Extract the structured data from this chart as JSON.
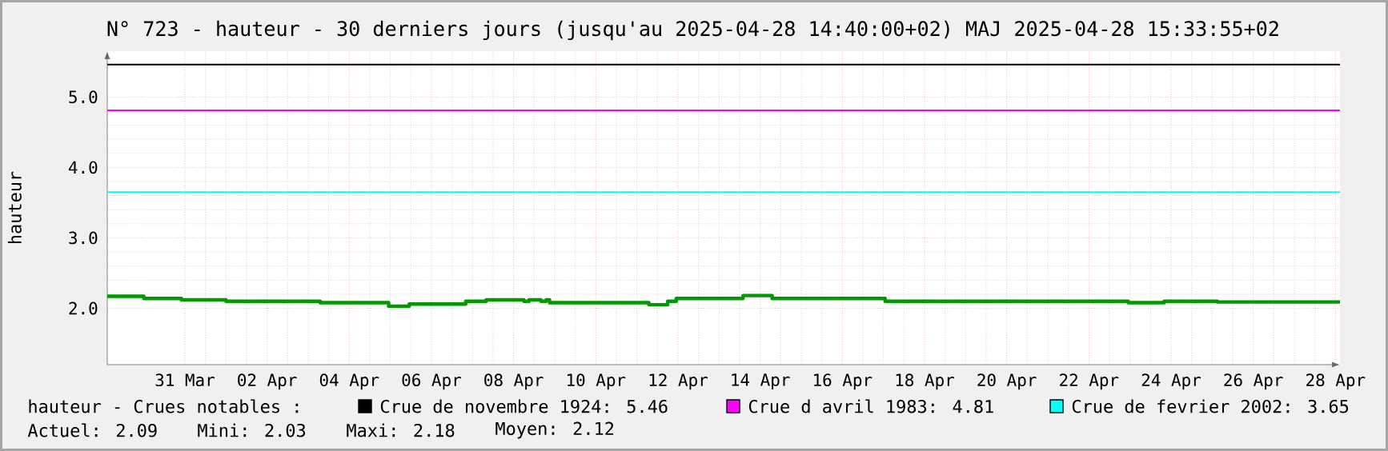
{
  "chart_data": {
    "type": "step",
    "title": "N° 723 - hauteur - 30 derniers jours (jusqu'au 2025-04-28 14:40:00+02) MAJ 2025-04-28 15:33:55+02",
    "ylabel": "hauteur",
    "x": [
      "2025-03-29T14:40",
      "2025-03-30T12:00",
      "2025-03-31T10:00",
      "2025-04-01T12:00",
      "2025-04-03T19:00",
      "2025-04-05T11:00",
      "2025-04-05T23:00",
      "2025-04-07T08:00",
      "2025-04-07T20:00",
      "2025-04-08T18:00",
      "2025-04-08T21:00",
      "2025-04-09T04:00",
      "2025-04-09T07:00",
      "2025-04-09T09:00",
      "2025-04-11T19:00",
      "2025-04-12T06:00",
      "2025-04-12T11:00",
      "2025-04-14T02:00",
      "2025-04-14T19:00",
      "2025-04-17T13:00",
      "2025-04-23T11:00",
      "2025-04-24T08:00",
      "2025-04-25T15:00",
      "2025-04-28T14:40"
    ],
    "series": [
      {
        "color": "#009900",
        "values": [
          2.17,
          2.14,
          2.12,
          2.1,
          2.08,
          2.03,
          2.06,
          2.1,
          2.12,
          2.1,
          2.12,
          2.1,
          2.12,
          2.08,
          2.05,
          2.1,
          2.14,
          2.18,
          2.14,
          2.1,
          2.08,
          2.1,
          2.09,
          2.09
        ]
      }
    ],
    "xlim": [
      "2025-03-29T14:40",
      "2025-04-28T14:40"
    ],
    "xticks": [
      {
        "value": "2025-03-31T12:00",
        "label": "31 Mar"
      },
      {
        "value": "2025-04-02T12:00",
        "label": "02 Apr"
      },
      {
        "value": "2025-04-04T12:00",
        "label": "04 Apr"
      },
      {
        "value": "2025-04-06T12:00",
        "label": "06 Apr"
      },
      {
        "value": "2025-04-08T12:00",
        "label": "08 Apr"
      },
      {
        "value": "2025-04-10T12:00",
        "label": "10 Apr"
      },
      {
        "value": "2025-04-12T12:00",
        "label": "12 Apr"
      },
      {
        "value": "2025-04-14T12:00",
        "label": "14 Apr"
      },
      {
        "value": "2025-04-16T12:00",
        "label": "16 Apr"
      },
      {
        "value": "2025-04-18T12:00",
        "label": "18 Apr"
      },
      {
        "value": "2025-04-20T12:00",
        "label": "20 Apr"
      },
      {
        "value": "2025-04-22T12:00",
        "label": "22 Apr"
      },
      {
        "value": "2025-04-24T12:00",
        "label": "24 Apr"
      },
      {
        "value": "2025-04-26T12:00",
        "label": "26 Apr"
      },
      {
        "value": "2025-04-28T12:00",
        "label": "28 Apr"
      }
    ],
    "ylim": [
      1.2,
      5.65
    ],
    "yticks": [
      {
        "value": 2,
        "label": "2.0"
      },
      {
        "value": 3,
        "label": "3.0"
      },
      {
        "value": 4,
        "label": "4.0"
      },
      {
        "value": 5,
        "label": "5.0"
      }
    ],
    "grid": true,
    "legend": "bottom",
    "ref_lines": [
      {
        "axis": "y",
        "value": 5.46,
        "label": "Crue de novembre 1924: 5.46",
        "color": "#000000"
      },
      {
        "axis": "y",
        "value": 4.81,
        "label": "Crue d avril 1983: 4.81",
        "color": "#ff00ff"
      },
      {
        "axis": "y",
        "value": 3.65,
        "label": "Crue de fevrier 2002: 3.65",
        "color": "#00ffff"
      }
    ],
    "annotations": [
      "hauteur - Crues notables :",
      "Actuel: 2.09",
      "Mini: 2.03",
      "Maxi: 2.18",
      "Moyen: 2.12"
    ]
  }
}
